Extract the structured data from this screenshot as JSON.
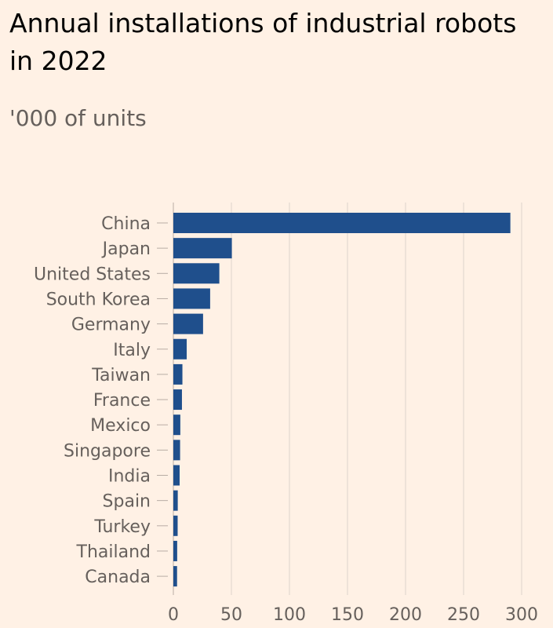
{
  "title": "Annual installations of industrial robots in 2022",
  "subtitle": "'000 of units",
  "colors": {
    "background": "#fff1e5",
    "bar": "#1f4f8c",
    "grid": "#dcd2ca",
    "text": "#66605c",
    "title": "#000000"
  },
  "chart_data": {
    "type": "bar",
    "orientation": "horizontal",
    "title": "Annual installations of industrial robots in 2022",
    "subtitle": "'000 of units",
    "xlabel": "",
    "ylabel": "",
    "categories": [
      "China",
      "Japan",
      "United States",
      "South Korea",
      "Germany",
      "Italy",
      "Taiwan",
      "France",
      "Mexico",
      "Singapore",
      "India",
      "Spain",
      "Turkey",
      "Thailand",
      "Canada"
    ],
    "values": [
      290.3,
      50.4,
      39.6,
      31.7,
      25.6,
      11.5,
      7.8,
      7.4,
      6.0,
      5.8,
      5.4,
      3.8,
      3.7,
      3.3,
      3.2
    ],
    "xlim": [
      0,
      300
    ],
    "x_ticks": [
      "0",
      "50",
      "100",
      "150",
      "200",
      "250",
      "300"
    ],
    "grid": true,
    "legend": "none"
  }
}
